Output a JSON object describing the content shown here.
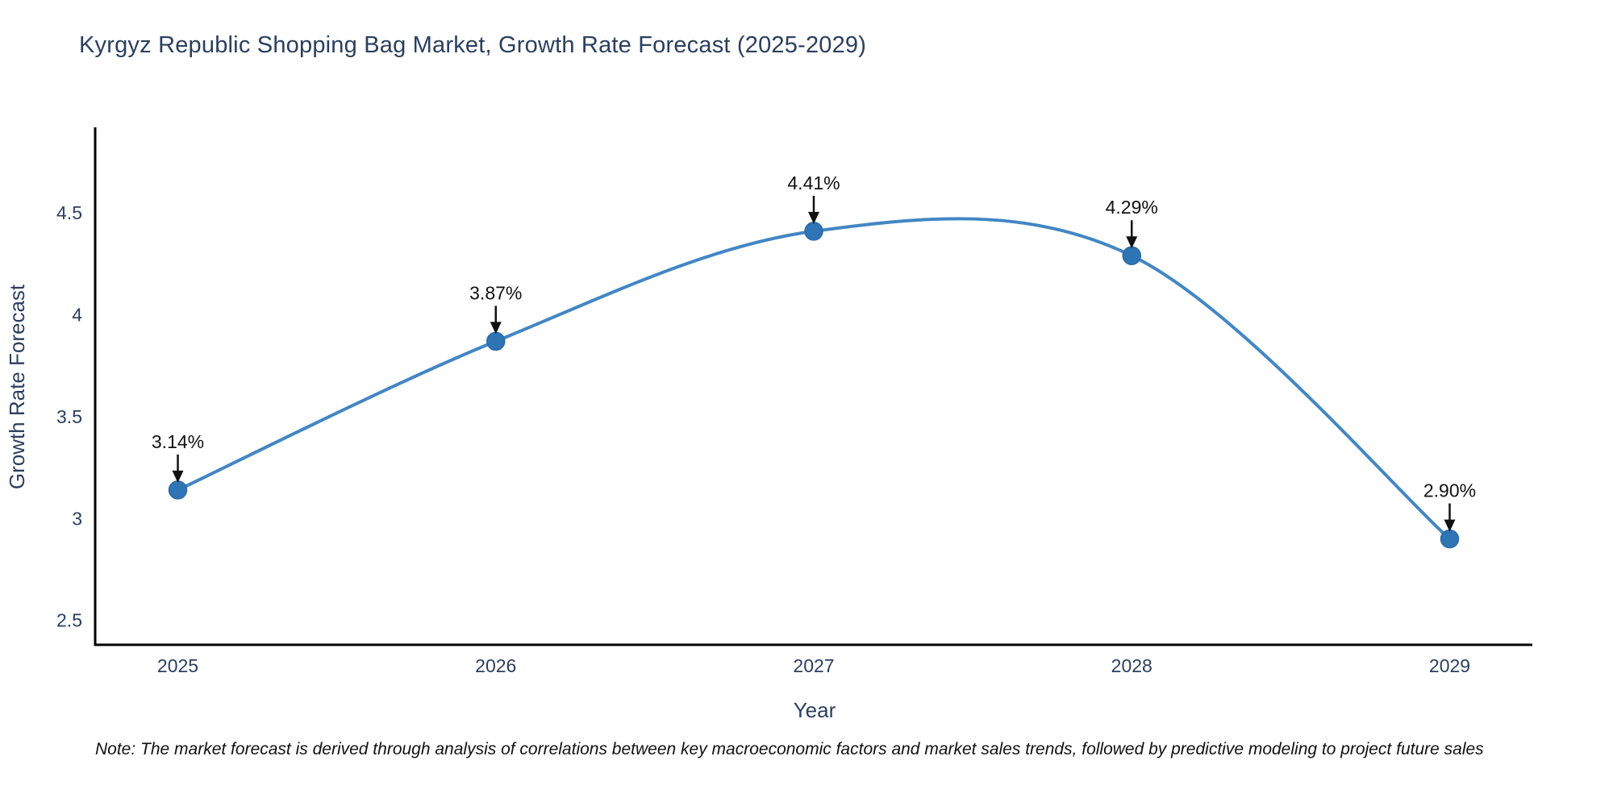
{
  "title": "Kyrgyz Republic Shopping Bag Market, Growth Rate Forecast (2025-2029)",
  "note": "Note: The market forecast is derived through analysis of correlations between key macroeconomic factors and market sales trends, followed by predictive modeling to project future sales",
  "chart_data": {
    "type": "line",
    "line_shape": "spline",
    "title": "Kyrgyz Republic Shopping Bag Market, Growth Rate Forecast (2025-2029)",
    "xlabel": "Year",
    "ylabel": "Growth Rate Forecast",
    "x": [
      2025,
      2026,
      2027,
      2028,
      2029
    ],
    "values": [
      3.14,
      3.87,
      4.41,
      4.29,
      2.9
    ],
    "point_labels": [
      "3.14%",
      "3.87%",
      "4.41%",
      "4.29%",
      "2.90%"
    ],
    "xticks": [
      2025,
      2026,
      2027,
      2028,
      2029
    ],
    "yticks": [
      4.5,
      4,
      3.5,
      3,
      2.5
    ],
    "xlim": [
      2024.74,
      2029.26
    ],
    "ylim": [
      2.38,
      4.92
    ],
    "grid": false,
    "legend": "none",
    "colors": {
      "line": "#4286c4",
      "marker": "#2f74b4",
      "marker_edge": "#2a6aa6",
      "annotation": "#111111",
      "axis": "#000000",
      "tick_text": "#2a3f5f"
    }
  }
}
